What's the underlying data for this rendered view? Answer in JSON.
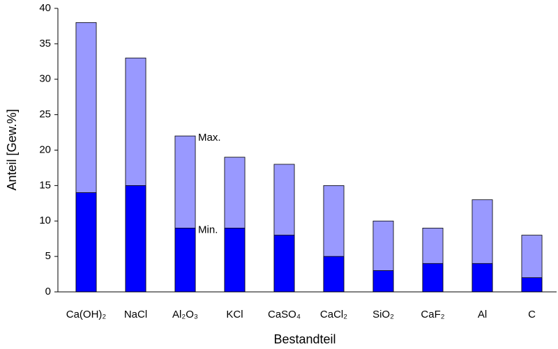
{
  "chart_data": {
    "type": "bar",
    "categories": [
      "Ca(OH)₂",
      "NaCl",
      "Al₂O₃",
      "KCl",
      "CaSO₄",
      "CaCl₂",
      "SiO₂",
      "CaF₂",
      "Al",
      "C"
    ],
    "series": [
      {
        "name": "Max.",
        "color": "#9999ff",
        "values": [
          38,
          33,
          22,
          19,
          18,
          15,
          10,
          9,
          13,
          8
        ]
      },
      {
        "name": "Min.",
        "color": "#0000ff",
        "values": [
          14,
          15,
          9,
          9,
          8,
          5,
          3,
          4,
          4,
          2
        ]
      }
    ],
    "x_label": "Bestandteil",
    "y_label": "Anteil [Gew.%]",
    "ylim": [
      0,
      40
    ],
    "yticks": [
      0,
      5,
      10,
      15,
      20,
      25,
      30,
      35,
      40
    ],
    "grid": false
  }
}
